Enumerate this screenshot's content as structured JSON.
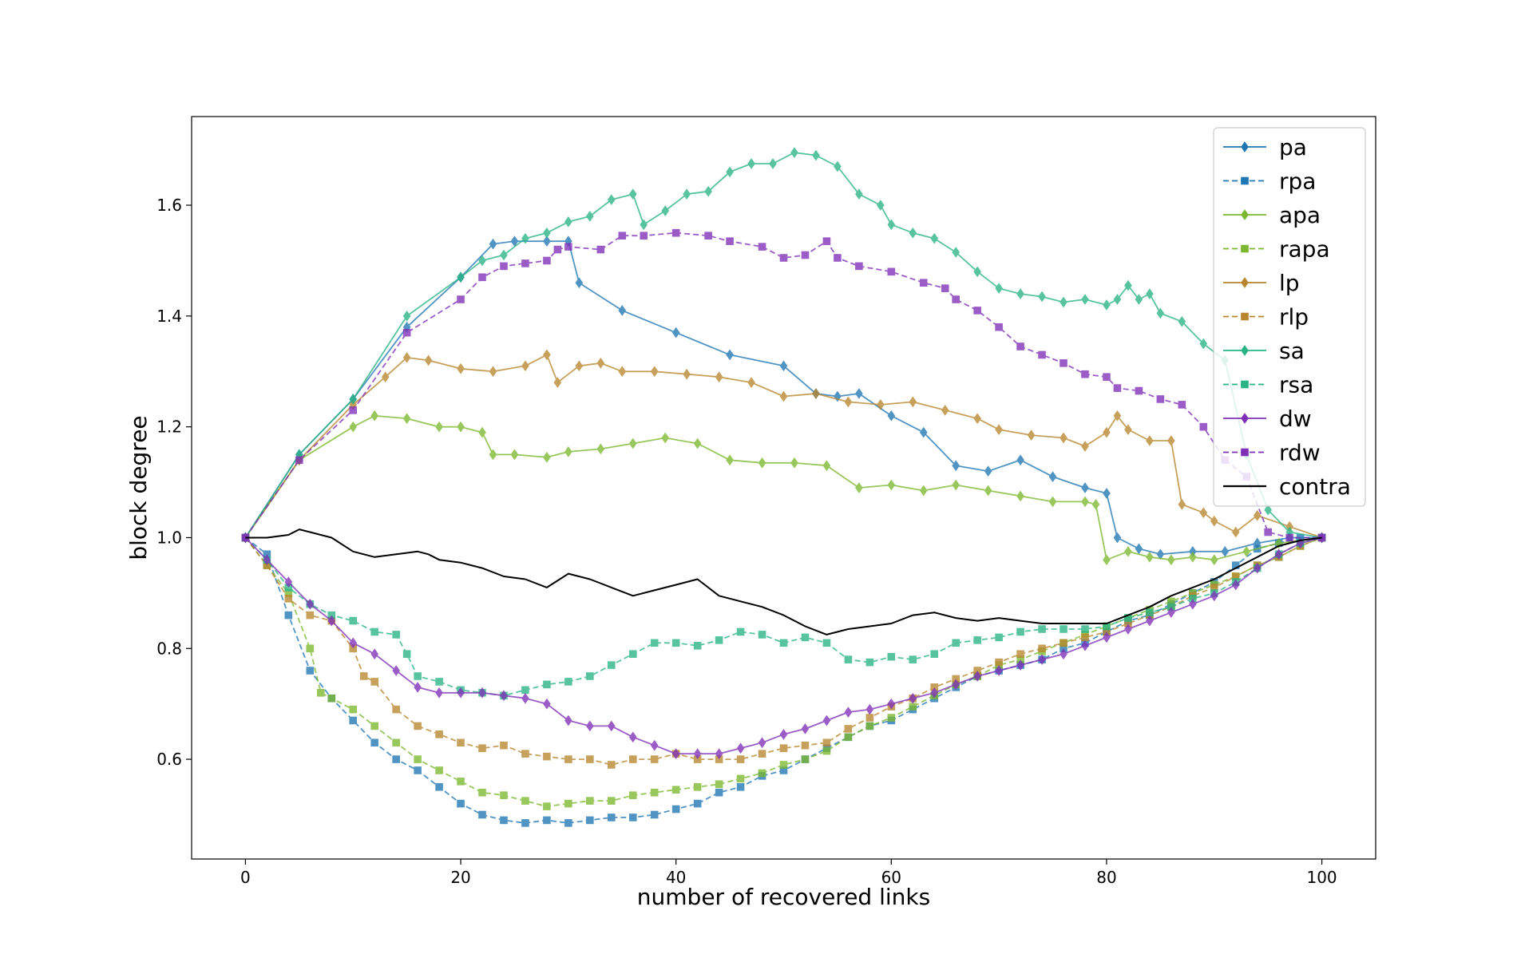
{
  "chart_data": {
    "type": "line",
    "title": "",
    "xlabel": "number of recovered links",
    "ylabel": "block degree",
    "xlim": [
      -5,
      105
    ],
    "ylim": [
      0.42,
      1.76
    ],
    "xticks": [
      0,
      20,
      40,
      60,
      80,
      100
    ],
    "yticks": [
      0.6,
      0.8,
      1.0,
      1.2,
      1.4,
      1.6
    ],
    "xtick_labels": [
      "0",
      "20",
      "40",
      "60",
      "80",
      "100"
    ],
    "ytick_labels": [
      "0.6",
      "0.8",
      "1.0",
      "1.2",
      "1.4",
      "1.6"
    ],
    "grid": false,
    "legend_position": "top-right",
    "series": [
      {
        "name": "pa",
        "color": "#1f77b4",
        "dash": "solid",
        "marker": "diamond",
        "x": [
          0,
          5,
          10,
          15,
          20,
          23,
          25,
          28,
          30,
          31,
          35,
          40,
          45,
          50,
          53,
          55,
          57,
          60,
          63,
          66,
          69,
          72,
          75,
          78,
          80,
          81,
          83,
          85,
          88,
          91,
          94,
          97,
          100
        ],
        "y": [
          1.0,
          1.15,
          1.25,
          1.38,
          1.47,
          1.53,
          1.535,
          1.535,
          1.535,
          1.46,
          1.41,
          1.37,
          1.33,
          1.31,
          1.26,
          1.255,
          1.26,
          1.22,
          1.19,
          1.13,
          1.12,
          1.14,
          1.11,
          1.09,
          1.08,
          1.0,
          0.98,
          0.97,
          0.975,
          0.975,
          0.99,
          1.0,
          1.0
        ]
      },
      {
        "name": "rpa",
        "color": "#1f77b4",
        "dash": "dashed",
        "marker": "square",
        "x": [
          0,
          2,
          4,
          6,
          8,
          10,
          12,
          14,
          16,
          18,
          20,
          22,
          24,
          26,
          28,
          30,
          32,
          34,
          36,
          38,
          40,
          42,
          44,
          46,
          48,
          50,
          52,
          54,
          56,
          58,
          60,
          62,
          64,
          66,
          68,
          70,
          72,
          74,
          76,
          78,
          80,
          82,
          84,
          86,
          88,
          90,
          92,
          94,
          96,
          98,
          100
        ],
        "y": [
          1.0,
          0.97,
          0.86,
          0.76,
          0.71,
          0.67,
          0.63,
          0.6,
          0.58,
          0.55,
          0.52,
          0.5,
          0.49,
          0.485,
          0.49,
          0.485,
          0.49,
          0.495,
          0.495,
          0.5,
          0.51,
          0.52,
          0.54,
          0.55,
          0.57,
          0.58,
          0.6,
          0.62,
          0.64,
          0.66,
          0.67,
          0.69,
          0.71,
          0.73,
          0.75,
          0.76,
          0.77,
          0.78,
          0.8,
          0.81,
          0.83,
          0.85,
          0.86,
          0.88,
          0.9,
          0.92,
          0.95,
          0.98,
          0.99,
          1.0,
          1.0
        ]
      },
      {
        "name": "apa",
        "color": "#7cb82f",
        "dash": "solid",
        "marker": "diamond",
        "x": [
          0,
          5,
          10,
          12,
          15,
          18,
          20,
          22,
          23,
          25,
          28,
          30,
          33,
          36,
          39,
          42,
          45,
          48,
          51,
          54,
          57,
          60,
          63,
          66,
          69,
          72,
          75,
          78,
          79,
          80,
          82,
          84,
          86,
          88,
          90,
          93,
          96,
          100
        ],
        "y": [
          1.0,
          1.14,
          1.2,
          1.22,
          1.215,
          1.2,
          1.2,
          1.19,
          1.15,
          1.15,
          1.145,
          1.155,
          1.16,
          1.17,
          1.18,
          1.17,
          1.14,
          1.135,
          1.135,
          1.13,
          1.09,
          1.095,
          1.085,
          1.095,
          1.085,
          1.075,
          1.065,
          1.065,
          1.06,
          0.96,
          0.975,
          0.965,
          0.96,
          0.965,
          0.96,
          0.975,
          0.99,
          1.0
        ]
      },
      {
        "name": "rapa",
        "color": "#7cb82f",
        "dash": "dashed",
        "marker": "square",
        "x": [
          0,
          2,
          4,
          6,
          7,
          8,
          10,
          12,
          14,
          16,
          18,
          20,
          22,
          24,
          26,
          28,
          30,
          32,
          34,
          36,
          38,
          40,
          42,
          44,
          46,
          48,
          50,
          52,
          54,
          56,
          58,
          60,
          62,
          64,
          66,
          68,
          70,
          72,
          74,
          76,
          78,
          80,
          82,
          84,
          86,
          88,
          90,
          92,
          94,
          96,
          98,
          100
        ],
        "y": [
          1.0,
          0.95,
          0.9,
          0.8,
          0.72,
          0.71,
          0.69,
          0.66,
          0.63,
          0.6,
          0.58,
          0.56,
          0.54,
          0.535,
          0.525,
          0.515,
          0.52,
          0.525,
          0.525,
          0.535,
          0.54,
          0.545,
          0.55,
          0.555,
          0.565,
          0.575,
          0.59,
          0.6,
          0.615,
          0.64,
          0.66,
          0.675,
          0.695,
          0.715,
          0.735,
          0.75,
          0.77,
          0.78,
          0.795,
          0.81,
          0.825,
          0.84,
          0.855,
          0.87,
          0.885,
          0.9,
          0.915,
          0.93,
          0.95,
          0.965,
          0.985,
          1.0
        ]
      },
      {
        "name": "lp",
        "color": "#b8862e",
        "dash": "solid",
        "marker": "diamond",
        "x": [
          0,
          5,
          10,
          13,
          15,
          17,
          20,
          23,
          26,
          28,
          29,
          31,
          33,
          35,
          38,
          41,
          44,
          47,
          50,
          53,
          56,
          59,
          62,
          65,
          68,
          70,
          73,
          76,
          78,
          80,
          81,
          82,
          84,
          86,
          87,
          89,
          90,
          92,
          94,
          97,
          100
        ],
        "y": [
          1.0,
          1.14,
          1.24,
          1.29,
          1.325,
          1.32,
          1.305,
          1.3,
          1.31,
          1.33,
          1.28,
          1.31,
          1.315,
          1.3,
          1.3,
          1.295,
          1.29,
          1.28,
          1.255,
          1.26,
          1.245,
          1.24,
          1.245,
          1.23,
          1.215,
          1.195,
          1.185,
          1.18,
          1.165,
          1.19,
          1.22,
          1.195,
          1.175,
          1.175,
          1.06,
          1.045,
          1.03,
          1.01,
          1.04,
          1.02,
          1.0
        ]
      },
      {
        "name": "rlp",
        "color": "#b8862e",
        "dash": "dashed",
        "marker": "square",
        "x": [
          0,
          2,
          4,
          6,
          8,
          10,
          11,
          12,
          14,
          16,
          18,
          20,
          22,
          24,
          26,
          28,
          30,
          32,
          34,
          36,
          38,
          40,
          42,
          44,
          46,
          48,
          50,
          52,
          54,
          56,
          58,
          60,
          62,
          64,
          66,
          68,
          70,
          72,
          74,
          76,
          78,
          80,
          82,
          84,
          86,
          88,
          90,
          92,
          94,
          96,
          98,
          100
        ],
        "y": [
          1.0,
          0.95,
          0.89,
          0.86,
          0.85,
          0.8,
          0.75,
          0.74,
          0.69,
          0.66,
          0.645,
          0.63,
          0.62,
          0.625,
          0.61,
          0.605,
          0.6,
          0.6,
          0.59,
          0.6,
          0.6,
          0.61,
          0.6,
          0.6,
          0.6,
          0.61,
          0.62,
          0.625,
          0.63,
          0.655,
          0.675,
          0.695,
          0.71,
          0.73,
          0.745,
          0.76,
          0.775,
          0.79,
          0.8,
          0.81,
          0.82,
          0.83,
          0.845,
          0.86,
          0.875,
          0.895,
          0.91,
          0.93,
          0.95,
          0.965,
          0.985,
          1.0
        ]
      },
      {
        "name": "sa",
        "color": "#29b485",
        "dash": "solid",
        "marker": "diamond",
        "x": [
          0,
          5,
          10,
          15,
          20,
          22,
          24,
          26,
          28,
          30,
          32,
          34,
          36,
          37,
          39,
          41,
          43,
          45,
          47,
          49,
          51,
          53,
          55,
          57,
          59,
          60,
          62,
          64,
          66,
          68,
          70,
          72,
          74,
          76,
          78,
          80,
          81,
          82,
          83,
          84,
          85,
          87,
          89,
          91,
          93,
          95,
          97,
          100
        ],
        "y": [
          1.0,
          1.15,
          1.25,
          1.4,
          1.47,
          1.5,
          1.51,
          1.54,
          1.55,
          1.57,
          1.58,
          1.61,
          1.62,
          1.565,
          1.59,
          1.62,
          1.625,
          1.66,
          1.675,
          1.675,
          1.695,
          1.69,
          1.67,
          1.62,
          1.6,
          1.565,
          1.55,
          1.54,
          1.515,
          1.48,
          1.45,
          1.44,
          1.435,
          1.425,
          1.43,
          1.42,
          1.43,
          1.455,
          1.43,
          1.44,
          1.405,
          1.39,
          1.35,
          1.32,
          1.15,
          1.05,
          1.01,
          1.0
        ]
      },
      {
        "name": "rsa",
        "color": "#29b485",
        "dash": "dashed",
        "marker": "square",
        "x": [
          0,
          2,
          4,
          6,
          8,
          10,
          12,
          14,
          15,
          16,
          18,
          20,
          22,
          24,
          26,
          28,
          30,
          32,
          34,
          36,
          38,
          40,
          42,
          44,
          46,
          48,
          50,
          52,
          54,
          56,
          58,
          60,
          62,
          64,
          66,
          68,
          70,
          72,
          74,
          76,
          78,
          80,
          82,
          84,
          86,
          88,
          90,
          92,
          94,
          96,
          98,
          100
        ],
        "y": [
          1.0,
          0.96,
          0.91,
          0.88,
          0.86,
          0.85,
          0.83,
          0.825,
          0.79,
          0.75,
          0.74,
          0.725,
          0.72,
          0.715,
          0.725,
          0.735,
          0.74,
          0.75,
          0.77,
          0.79,
          0.81,
          0.81,
          0.805,
          0.815,
          0.83,
          0.825,
          0.81,
          0.82,
          0.81,
          0.78,
          0.775,
          0.785,
          0.78,
          0.79,
          0.81,
          0.815,
          0.82,
          0.83,
          0.835,
          0.835,
          0.835,
          0.84,
          0.855,
          0.865,
          0.875,
          0.89,
          0.9,
          0.92,
          0.945,
          0.97,
          0.99,
          1.0
        ]
      },
      {
        "name": "dw",
        "color": "#7f2fb8",
        "dash": "solid",
        "marker": "diamond",
        "x": [
          0,
          2,
          4,
          6,
          8,
          10,
          12,
          14,
          16,
          18,
          20,
          22,
          24,
          26,
          28,
          30,
          32,
          34,
          36,
          38,
          40,
          42,
          44,
          46,
          48,
          50,
          52,
          54,
          56,
          58,
          60,
          62,
          64,
          66,
          68,
          70,
          72,
          74,
          76,
          78,
          80,
          82,
          84,
          86,
          88,
          90,
          92,
          94,
          96,
          98,
          100
        ],
        "y": [
          1.0,
          0.96,
          0.92,
          0.88,
          0.85,
          0.81,
          0.79,
          0.76,
          0.73,
          0.72,
          0.72,
          0.72,
          0.715,
          0.71,
          0.7,
          0.67,
          0.66,
          0.66,
          0.64,
          0.625,
          0.61,
          0.61,
          0.61,
          0.62,
          0.63,
          0.645,
          0.655,
          0.67,
          0.685,
          0.69,
          0.7,
          0.71,
          0.72,
          0.735,
          0.75,
          0.76,
          0.77,
          0.78,
          0.79,
          0.805,
          0.82,
          0.835,
          0.85,
          0.865,
          0.88,
          0.895,
          0.915,
          0.945,
          0.97,
          0.99,
          1.0
        ]
      },
      {
        "name": "rdw",
        "color": "#7f2fb8",
        "dash": "dashed",
        "marker": "square",
        "x": [
          0,
          5,
          10,
          15,
          20,
          22,
          24,
          26,
          28,
          29,
          30,
          33,
          35,
          37,
          40,
          43,
          45,
          48,
          50,
          52,
          54,
          55,
          57,
          60,
          63,
          65,
          66,
          68,
          70,
          72,
          74,
          76,
          78,
          80,
          81,
          83,
          85,
          87,
          89,
          91,
          93,
          95,
          97,
          100
        ],
        "y": [
          1.0,
          1.14,
          1.23,
          1.37,
          1.43,
          1.47,
          1.49,
          1.495,
          1.5,
          1.52,
          1.525,
          1.52,
          1.545,
          1.545,
          1.55,
          1.545,
          1.535,
          1.525,
          1.505,
          1.51,
          1.535,
          1.505,
          1.49,
          1.48,
          1.46,
          1.45,
          1.43,
          1.41,
          1.38,
          1.345,
          1.33,
          1.315,
          1.295,
          1.29,
          1.27,
          1.265,
          1.25,
          1.24,
          1.2,
          1.14,
          1.11,
          1.01,
          1.0,
          1.0
        ]
      },
      {
        "name": "contra",
        "color": "#000000",
        "dash": "solid",
        "marker": "none",
        "x": [
          0,
          2,
          4,
          5,
          6,
          8,
          10,
          12,
          14,
          16,
          17,
          18,
          20,
          22,
          24,
          26,
          28,
          30,
          32,
          34,
          36,
          38,
          40,
          42,
          44,
          46,
          48,
          50,
          52,
          54,
          56,
          58,
          60,
          62,
          64,
          66,
          68,
          70,
          72,
          74,
          76,
          78,
          80,
          82,
          84,
          86,
          88,
          90,
          92,
          94,
          96,
          98,
          100
        ],
        "y": [
          1.0,
          1.0,
          1.005,
          1.015,
          1.01,
          1.0,
          0.975,
          0.965,
          0.97,
          0.975,
          0.97,
          0.96,
          0.955,
          0.945,
          0.93,
          0.925,
          0.91,
          0.935,
          0.925,
          0.91,
          0.895,
          0.905,
          0.915,
          0.925,
          0.895,
          0.885,
          0.875,
          0.86,
          0.84,
          0.825,
          0.835,
          0.84,
          0.845,
          0.86,
          0.865,
          0.855,
          0.85,
          0.855,
          0.85,
          0.845,
          0.845,
          0.845,
          0.845,
          0.86,
          0.875,
          0.895,
          0.91,
          0.925,
          0.945,
          0.965,
          0.985,
          0.995,
          1.0
        ]
      }
    ]
  }
}
